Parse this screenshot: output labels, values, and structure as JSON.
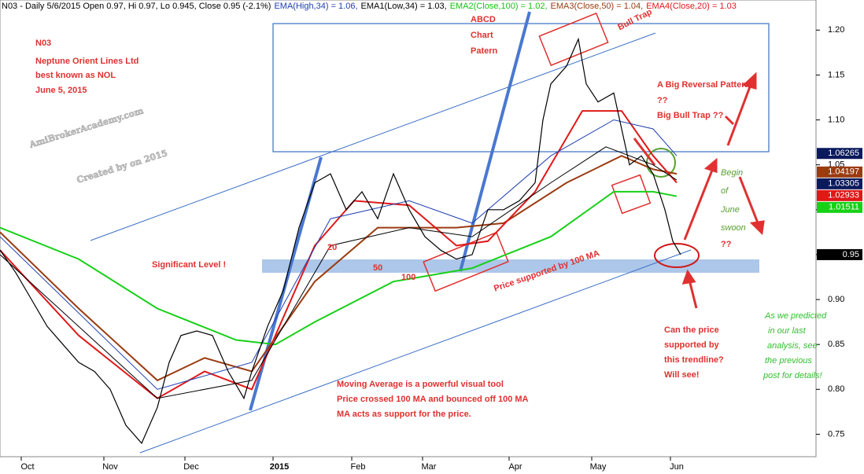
{
  "chart_data": {
    "type": "line",
    "header": [
      {
        "text": "N03 - Daily 5/6/2015 Open 0.97, Hi 0.97, Lo 0.945, Close 0.95 (-2.1%)",
        "color": "#000000"
      },
      {
        "text": "EMA(High,34) = 1.06,",
        "color": "#1f3fb0"
      },
      {
        "text": "EMA1(Low,34) = 1.03,",
        "color": "#000000"
      },
      {
        "text": "EMA2(Close,100) = 1.02,",
        "color": "#18c018"
      },
      {
        "text": "EMA3(Close,50) = 1.04,",
        "color": "#9a3b10"
      },
      {
        "text": "EMA4(Close,20) = 1.03",
        "color": "#e01818"
      }
    ],
    "xlim": [
      0,
      207
    ],
    "xticks": [
      {
        "value": 7,
        "label": "Oct"
      },
      {
        "value": 28,
        "label": "Nov"
      },
      {
        "value": 48.6,
        "label": "Dec"
      },
      {
        "value": 71,
        "label": "2015"
      },
      {
        "value": 91,
        "label": "Feb"
      },
      {
        "value": 109,
        "label": "Mar"
      },
      {
        "value": 131,
        "label": "Apr"
      },
      {
        "value": 152,
        "label": "May"
      },
      {
        "value": 172,
        "label": "Jun"
      }
    ],
    "ylim": [
      0.725,
      1.23
    ],
    "yticks": [
      0.75,
      {
        "value": 0.8,
        "label": "0.80"
      },
      0.85,
      {
        "value": 0.9,
        "label": "0.90"
      },
      0.95,
      {
        "value": 1.0,
        "label": "1.00"
      },
      1.05,
      {
        "value": 1.1,
        "label": "1.10"
      },
      1.15,
      {
        "value": 1.2,
        "label": "1.20"
      }
    ],
    "series": [
      {
        "color": "#18d018",
        "width": 2,
        "x": [
          0,
          20,
          40,
          60,
          70,
          80,
          100,
          120,
          140,
          156,
          166,
          172
        ],
        "values": [
          0.98,
          0.945,
          0.89,
          0.855,
          0.85,
          0.875,
          0.92,
          0.935,
          0.97,
          1.02,
          1.02,
          1.015
        ]
      },
      {
        "color": "#9a3b10",
        "width": 2,
        "x": [
          0,
          20,
          40,
          52,
          64,
          80,
          96,
          116,
          128,
          144,
          158,
          166,
          172
        ],
        "values": [
          0.975,
          0.89,
          0.81,
          0.835,
          0.82,
          0.92,
          0.98,
          0.98,
          0.985,
          1.03,
          1.06,
          1.045,
          1.04
        ]
      },
      {
        "color": "#e01818",
        "width": 2,
        "x": [
          0,
          20,
          40,
          52,
          64,
          80,
          90,
          104,
          116,
          124,
          136,
          148,
          158,
          166,
          172
        ],
        "values": [
          0.955,
          0.86,
          0.79,
          0.82,
          0.8,
          0.96,
          1.01,
          1.005,
          0.96,
          0.965,
          1.02,
          1.11,
          1.11,
          1.06,
          1.03
        ]
      },
      {
        "color": "#1f3fb0",
        "width": 1,
        "x": [
          0,
          40,
          64,
          84,
          104,
          120,
          140,
          156,
          166,
          172
        ],
        "values": [
          0.97,
          0.8,
          0.83,
          0.99,
          1.01,
          0.985,
          1.06,
          1.1,
          1.09,
          1.06
        ]
      },
      {
        "color": "#000000",
        "width": 1,
        "x": [
          0,
          40,
          64,
          84,
          104,
          120,
          140,
          154,
          166,
          172
        ],
        "values": [
          0.95,
          0.79,
          0.81,
          0.96,
          0.98,
          0.97,
          1.03,
          1.07,
          1.05,
          1.033
        ]
      },
      {
        "color": "#000000",
        "width": 1.2,
        "x": [
          0,
          4,
          8,
          12,
          16,
          20,
          24,
          28,
          32,
          36,
          40,
          43,
          46,
          50,
          54,
          58,
          62,
          64,
          68,
          72,
          76,
          80,
          84,
          88,
          92,
          96,
          100,
          104,
          108,
          112,
          116,
          120,
          124,
          128,
          132,
          136,
          138,
          140,
          144,
          147,
          149,
          152,
          156,
          158,
          160,
          163,
          166,
          169,
          171,
          173
        ],
        "values": [
          0.955,
          0.93,
          0.9,
          0.87,
          0.85,
          0.83,
          0.82,
          0.8,
          0.76,
          0.74,
          0.78,
          0.83,
          0.86,
          0.865,
          0.86,
          0.82,
          0.79,
          0.82,
          0.87,
          0.91,
          0.98,
          1.03,
          1.04,
          1.0,
          1.02,
          0.99,
          1.04,
          1.0,
          0.97,
          0.955,
          0.945,
          0.95,
          1.0,
          1.0,
          1.01,
          1.03,
          1.1,
          1.14,
          1.16,
          1.19,
          1.14,
          1.12,
          1.13,
          1.09,
          1.05,
          1.06,
          1.04,
          1.0,
          0.965,
          0.95
        ]
      }
    ],
    "price_labels": [
      {
        "value": 1.06265,
        "label": "1.06265",
        "color": "#0a1a5c"
      },
      {
        "value": 1.04197,
        "label": "1.04197",
        "color": "#9a3b10"
      },
      {
        "value": 1.03305,
        "label": "1.03305",
        "color": "#0a1a5c"
      },
      {
        "value": 1.02933,
        "label": "1.02933",
        "color": "#e01818"
      },
      {
        "value": 1.01511,
        "label": "1.01511",
        "color": "#18d018"
      },
      {
        "value": 0.95,
        "label": "0.95",
        "color": "#000000"
      }
    ],
    "annotations": [
      {
        "text": "N03",
        "color": "#e03030"
      },
      {
        "text": "Neptune Orient Lines Ltd",
        "color": "#e03030"
      },
      {
        "text": "best known as NOL",
        "color": "#e03030"
      },
      {
        "text": "June 5, 2015",
        "color": "#e03030"
      },
      {
        "text": "ABCD",
        "color": "#e03030"
      },
      {
        "text": "Chart",
        "color": "#e03030"
      },
      {
        "text": "Patern",
        "color": "#e03030"
      },
      {
        "text": "Bull Trap",
        "color": "#e03030"
      },
      {
        "text": "A Big Reversal Pattern",
        "color": "#e03030"
      },
      {
        "text": "??",
        "color": "#e03030"
      },
      {
        "text": "Big Bull Trap ??",
        "color": "#e03030"
      },
      {
        "text": "Begin",
        "color": "#58a030"
      },
      {
        "text": "of",
        "color": "#58a030"
      },
      {
        "text": "June",
        "color": "#58a030"
      },
      {
        "text": "swoon",
        "color": "#58a030"
      },
      {
        "text": "??",
        "color": "#e03030"
      },
      {
        "text": "Significant Level !",
        "color": "#e03030"
      },
      {
        "text": "20",
        "color": "#e03030"
      },
      {
        "text": "50",
        "color": "#e03030"
      },
      {
        "text": "100",
        "color": "#e03030"
      },
      {
        "text": "Price supported by 100 MA",
        "color": "#e03030"
      },
      {
        "text": "Can the price",
        "color": "#e03030"
      },
      {
        "text": "supported by",
        "color": "#e03030"
      },
      {
        "text": "this trendline?",
        "color": "#e03030"
      },
      {
        "text": "Will see!",
        "color": "#e03030"
      },
      {
        "text": "As we predicted",
        "color": "#30c030"
      },
      {
        "text": "in our last",
        "color": "#30c030"
      },
      {
        "text": "analysis, see",
        "color": "#30c030"
      },
      {
        "text": "the previous",
        "color": "#30c030"
      },
      {
        "text": "post for details!",
        "color": "#30c030"
      },
      {
        "text": "Moving Average is a powerful visual tool",
        "color": "#e03030"
      },
      {
        "text": "Price crossed 100 MA and bounced off 100 MA",
        "color": "#e03030"
      },
      {
        "text": "MA acts as support for the price.",
        "color": "#e03030"
      },
      {
        "text": "AmiBrokerAcademy.com",
        "color": "#c8c8c8"
      },
      {
        "text": "Created by on 2015",
        "color": "#c8c8c8"
      }
    ]
  }
}
